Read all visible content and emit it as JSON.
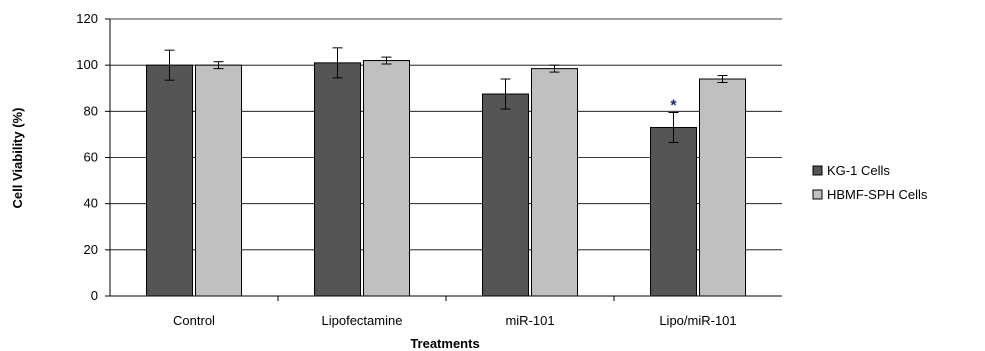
{
  "chart_data": {
    "type": "bar",
    "title": "",
    "xlabel": "Treatments",
    "ylabel": "Cell Viability (%)",
    "ylim": [
      0,
      120
    ],
    "yticks": [
      0,
      20,
      40,
      60,
      80,
      100,
      120
    ],
    "categories": [
      "Control",
      "Lipofectamine",
      "miR-101",
      "Lipo/miR-101"
    ],
    "series": [
      {
        "name": "KG-1 Cells",
        "color": "#555555",
        "values": [
          100,
          101,
          87.5,
          73
        ],
        "errors": [
          6.5,
          6.5,
          6.5,
          6.5
        ]
      },
      {
        "name": "HBMF-SPH Cells",
        "color": "#c0c0c0",
        "values": [
          100,
          102,
          98.5,
          94
        ],
        "errors": [
          1.5,
          1.5,
          1.5,
          1.5
        ]
      }
    ],
    "annotations": [
      {
        "category": "Lipo/miR-101",
        "series": "KG-1 Cells",
        "text": "*"
      }
    ],
    "grid": true,
    "legend_position": "right"
  }
}
